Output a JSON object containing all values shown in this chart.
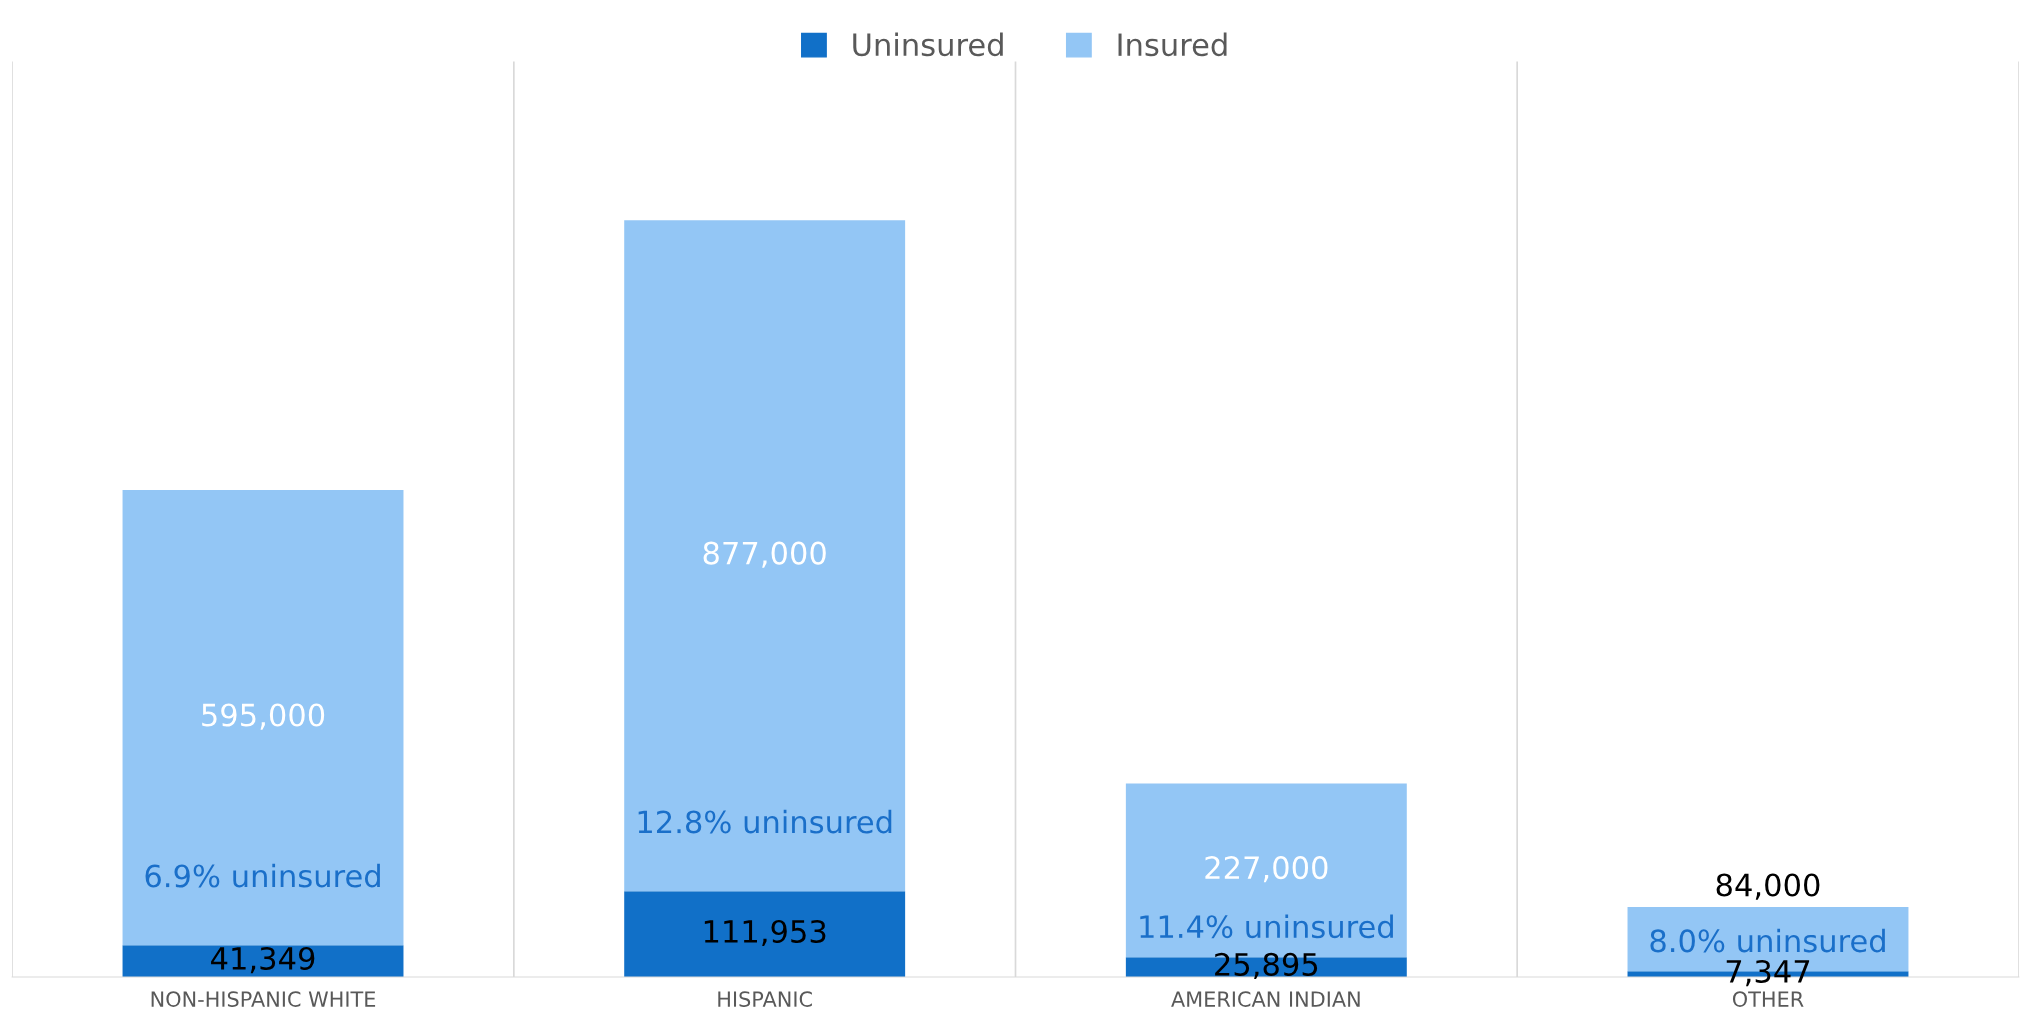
{
  "chart_data": {
    "type": "bar",
    "stacked": true,
    "categories": [
      "NON-HISPANIC WHITE",
      "HISPANIC",
      "AMERICAN INDIAN",
      "OTHER"
    ],
    "series": [
      {
        "name": "Uninsured",
        "color": "#1170c8",
        "values": [
          41349,
          111953,
          25895,
          7347
        ],
        "value_labels": [
          "41,349",
          "111,953",
          "25,895",
          "7,347"
        ]
      },
      {
        "name": "Insured",
        "color": "#93c6f5",
        "values": [
          595000,
          877000,
          227000,
          84000
        ],
        "value_labels": [
          "595,000",
          "877,000",
          "227,000",
          "84,000"
        ]
      }
    ],
    "annotations": [
      "6.9% uninsured",
      "12.8% uninsured",
      "11.4% uninsured",
      "8.0% uninsured"
    ],
    "tick_labels": "x",
    "grid": "x",
    "legend": "top"
  }
}
